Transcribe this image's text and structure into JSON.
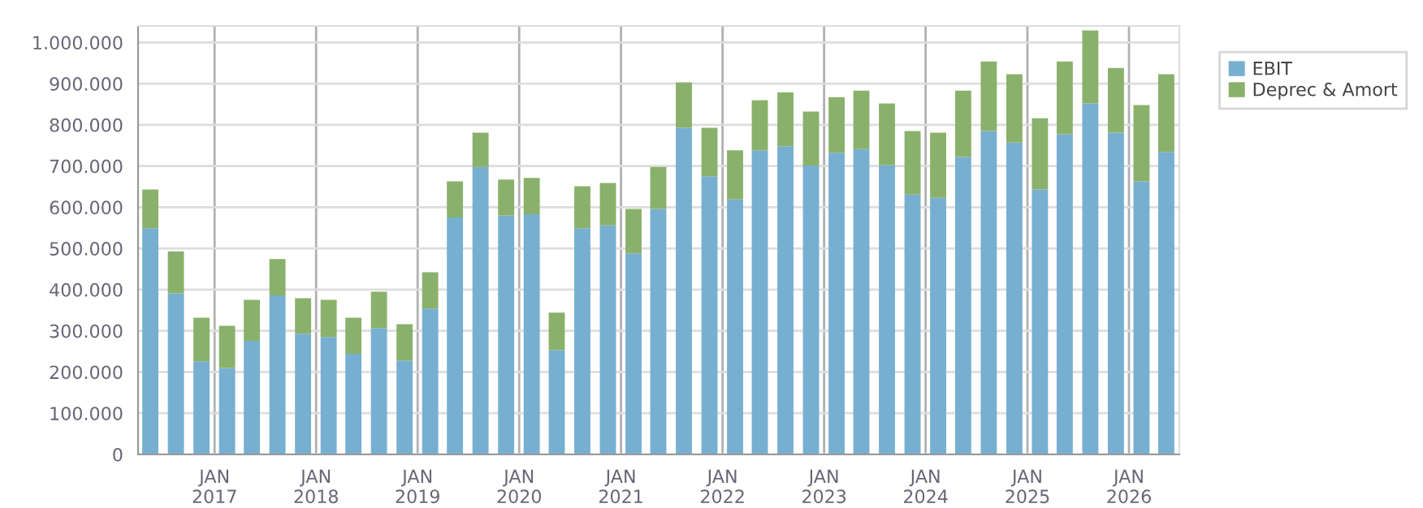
{
  "chart_data": {
    "type": "bar",
    "stacked": true,
    "x": [
      "2016-05-15",
      "2016-08-15",
      "2016-11-15",
      "2017-02-15",
      "2017-05-15",
      "2017-08-15",
      "2017-11-15",
      "2018-02-15",
      "2018-05-15",
      "2018-08-15",
      "2018-11-15",
      "2019-02-15",
      "2019-05-15",
      "2019-08-15",
      "2019-11-15",
      "2020-02-15",
      "2020-05-15",
      "2020-08-15",
      "2020-11-15",
      "2021-02-15",
      "2021-05-15",
      "2021-08-15",
      "2021-11-15",
      "2022-02-15",
      "2022-05-15",
      "2022-08-15",
      "2022-11-15",
      "2023-02-15",
      "2023-05-15",
      "2023-08-15",
      "2023-11-15",
      "2024-02-15",
      "2024-05-15",
      "2024-08-15",
      "2024-11-15",
      "2025-02-15",
      "2025-05-15",
      "2025-08-15",
      "2025-11-15",
      "2026-02-15",
      "2026-05-15"
    ],
    "series": [
      {
        "name": "EBIT",
        "color": "#77afd1",
        "values": [
          549000,
          391000,
          226000,
          210000,
          276000,
          386000,
          293000,
          285000,
          244000,
          307000,
          228000,
          354000,
          575000,
          698000,
          580000,
          583000,
          253000,
          549000,
          556000,
          488000,
          596000,
          793000,
          675000,
          619000,
          738000,
          748000,
          701000,
          732000,
          741000,
          702000,
          631000,
          623000,
          722000,
          785000,
          757000,
          643000,
          777000,
          852000,
          781000,
          663000,
          734000
        ]
      },
      {
        "name": "Deprec & Amort",
        "color": "#8ab16b",
        "values": [
          94000,
          102000,
          106000,
          102000,
          99000,
          88000,
          86000,
          90000,
          88000,
          88000,
          88000,
          88000,
          88000,
          83000,
          87000,
          88000,
          91000,
          102000,
          103000,
          108000,
          102000,
          110000,
          118000,
          119000,
          122000,
          131000,
          131000,
          135000,
          142000,
          150000,
          154000,
          158000,
          161000,
          169000,
          166000,
          173000,
          177000,
          177000,
          157000,
          185000,
          189000
        ]
      }
    ],
    "xlim": [
      "2016-04-01",
      "2026-07-01"
    ],
    "xticks": [
      {
        "value": "2017-01-01",
        "label": "JAN\n2017"
      },
      {
        "value": "2018-01-01",
        "label": "JAN\n2018"
      },
      {
        "value": "2019-01-01",
        "label": "JAN\n2019"
      },
      {
        "value": "2020-01-01",
        "label": "JAN\n2020"
      },
      {
        "value": "2021-01-01",
        "label": "JAN\n2021"
      },
      {
        "value": "2022-01-01",
        "label": "JAN\n2022"
      },
      {
        "value": "2023-01-01",
        "label": "JAN\n2023"
      },
      {
        "value": "2024-01-01",
        "label": "JAN\n2024"
      },
      {
        "value": "2025-01-01",
        "label": "JAN\n2025"
      },
      {
        "value": "2026-01-01",
        "label": "JAN\n2026"
      }
    ],
    "ylim": [
      0,
      1040000
    ],
    "yticks": [
      {
        "value": 0,
        "label": "0"
      },
      {
        "value": 100000,
        "label": "100.000"
      },
      {
        "value": 200000,
        "label": "200.000"
      },
      {
        "value": 300000,
        "label": "300.000"
      },
      {
        "value": 400000,
        "label": "400.000"
      },
      {
        "value": 500000,
        "label": "500.000"
      },
      {
        "value": 600000,
        "label": "600.000"
      },
      {
        "value": 700000,
        "label": "700.000"
      },
      {
        "value": 800000,
        "label": "800.000"
      },
      {
        "value": 900000,
        "label": "900.000"
      },
      {
        "value": 1000000,
        "label": "1.000.000"
      }
    ],
    "grid": true,
    "legend": "top right"
  }
}
